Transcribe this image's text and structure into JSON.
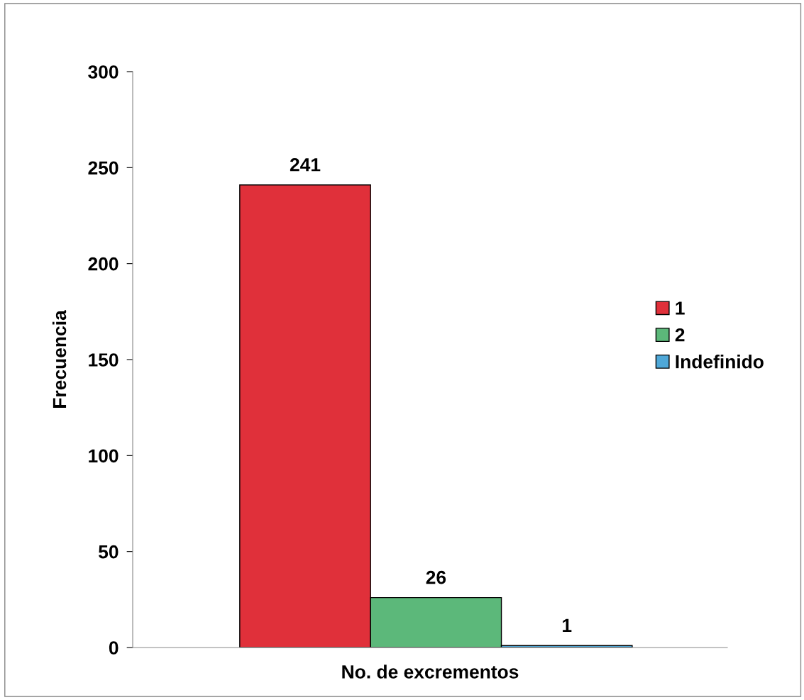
{
  "chart_data": {
    "type": "bar",
    "xlabel": "No. de excrementos",
    "ylabel": "Frecuencia",
    "categories": [
      null
    ],
    "series": [
      {
        "name": "1",
        "color": "#e0303a",
        "values": [
          241
        ]
      },
      {
        "name": "2",
        "color": "#5cb87a",
        "values": [
          26
        ]
      },
      {
        "name": "Indefinido",
        "color": "#4fa8d8",
        "values": [
          1
        ]
      }
    ],
    "ylim": [
      0,
      300
    ],
    "yticks": [
      0,
      50,
      100,
      150,
      200,
      250,
      300
    ],
    "data_labels": true,
    "legend": "right",
    "grid": false
  }
}
